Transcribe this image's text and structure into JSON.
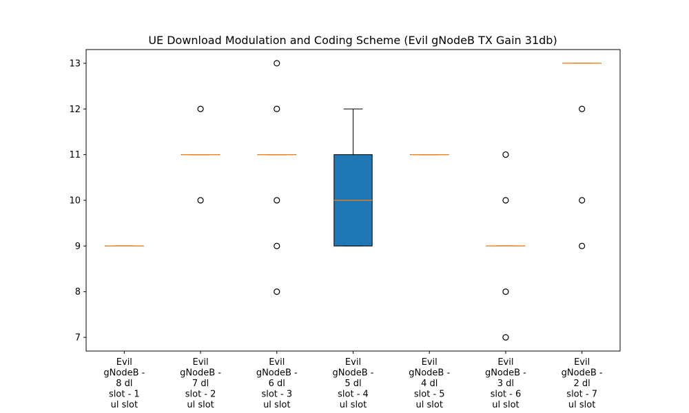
{
  "chart_data": {
    "type": "boxplot",
    "title": "UE Download Modulation and Coding Scheme (Evil gNodeB TX Gain 31db)",
    "xlabel": "",
    "ylabel": "",
    "ylim": [
      6.7,
      13.3
    ],
    "yticks": [
      7,
      8,
      9,
      10,
      11,
      12,
      13
    ],
    "grid": false,
    "legend": "none",
    "box_color": "#1f77b4",
    "median_color": "#ff7f0e",
    "categories": [
      [
        "Evil",
        "gNodeB -",
        "8 dl",
        "slot - 1",
        "ul slot"
      ],
      [
        "Evil",
        "gNodeB -",
        "7 dl",
        "slot - 2",
        "ul slot"
      ],
      [
        "Evil",
        "gNodeB -",
        "6 dl",
        "slot - 3",
        "ul slot"
      ],
      [
        "Evil",
        "gNodeB -",
        "5 dl",
        "slot - 4",
        "ul slot"
      ],
      [
        "Evil",
        "gNodeB -",
        "4 dl",
        "slot - 5",
        "ul slot"
      ],
      [
        "Evil",
        "gNodeB -",
        "3 dl",
        "slot - 6",
        "ul slot"
      ],
      [
        "Evil",
        "gNodeB -",
        "2 dl",
        "slot - 7",
        "ul slot"
      ]
    ],
    "boxes": [
      {
        "min": 9,
        "q1": 9,
        "median": 9,
        "q3": 9,
        "max": 9,
        "outliers": []
      },
      {
        "min": 11,
        "q1": 11,
        "median": 11,
        "q3": 11,
        "max": 11,
        "outliers": [
          12,
          10
        ]
      },
      {
        "min": 11,
        "q1": 11,
        "median": 11,
        "q3": 11,
        "max": 11,
        "outliers": [
          13,
          12,
          10,
          9,
          8
        ]
      },
      {
        "min": 9,
        "q1": 9,
        "median": 10,
        "q3": 11,
        "max": 12,
        "outliers": []
      },
      {
        "min": 11,
        "q1": 11,
        "median": 11,
        "q3": 11,
        "max": 11,
        "outliers": []
      },
      {
        "min": 9,
        "q1": 9,
        "median": 9,
        "q3": 9,
        "max": 9,
        "outliers": [
          11,
          10,
          8,
          7
        ]
      },
      {
        "min": 13,
        "q1": 13,
        "median": 13,
        "q3": 13,
        "max": 13,
        "outliers": [
          12,
          10,
          9
        ]
      }
    ]
  }
}
